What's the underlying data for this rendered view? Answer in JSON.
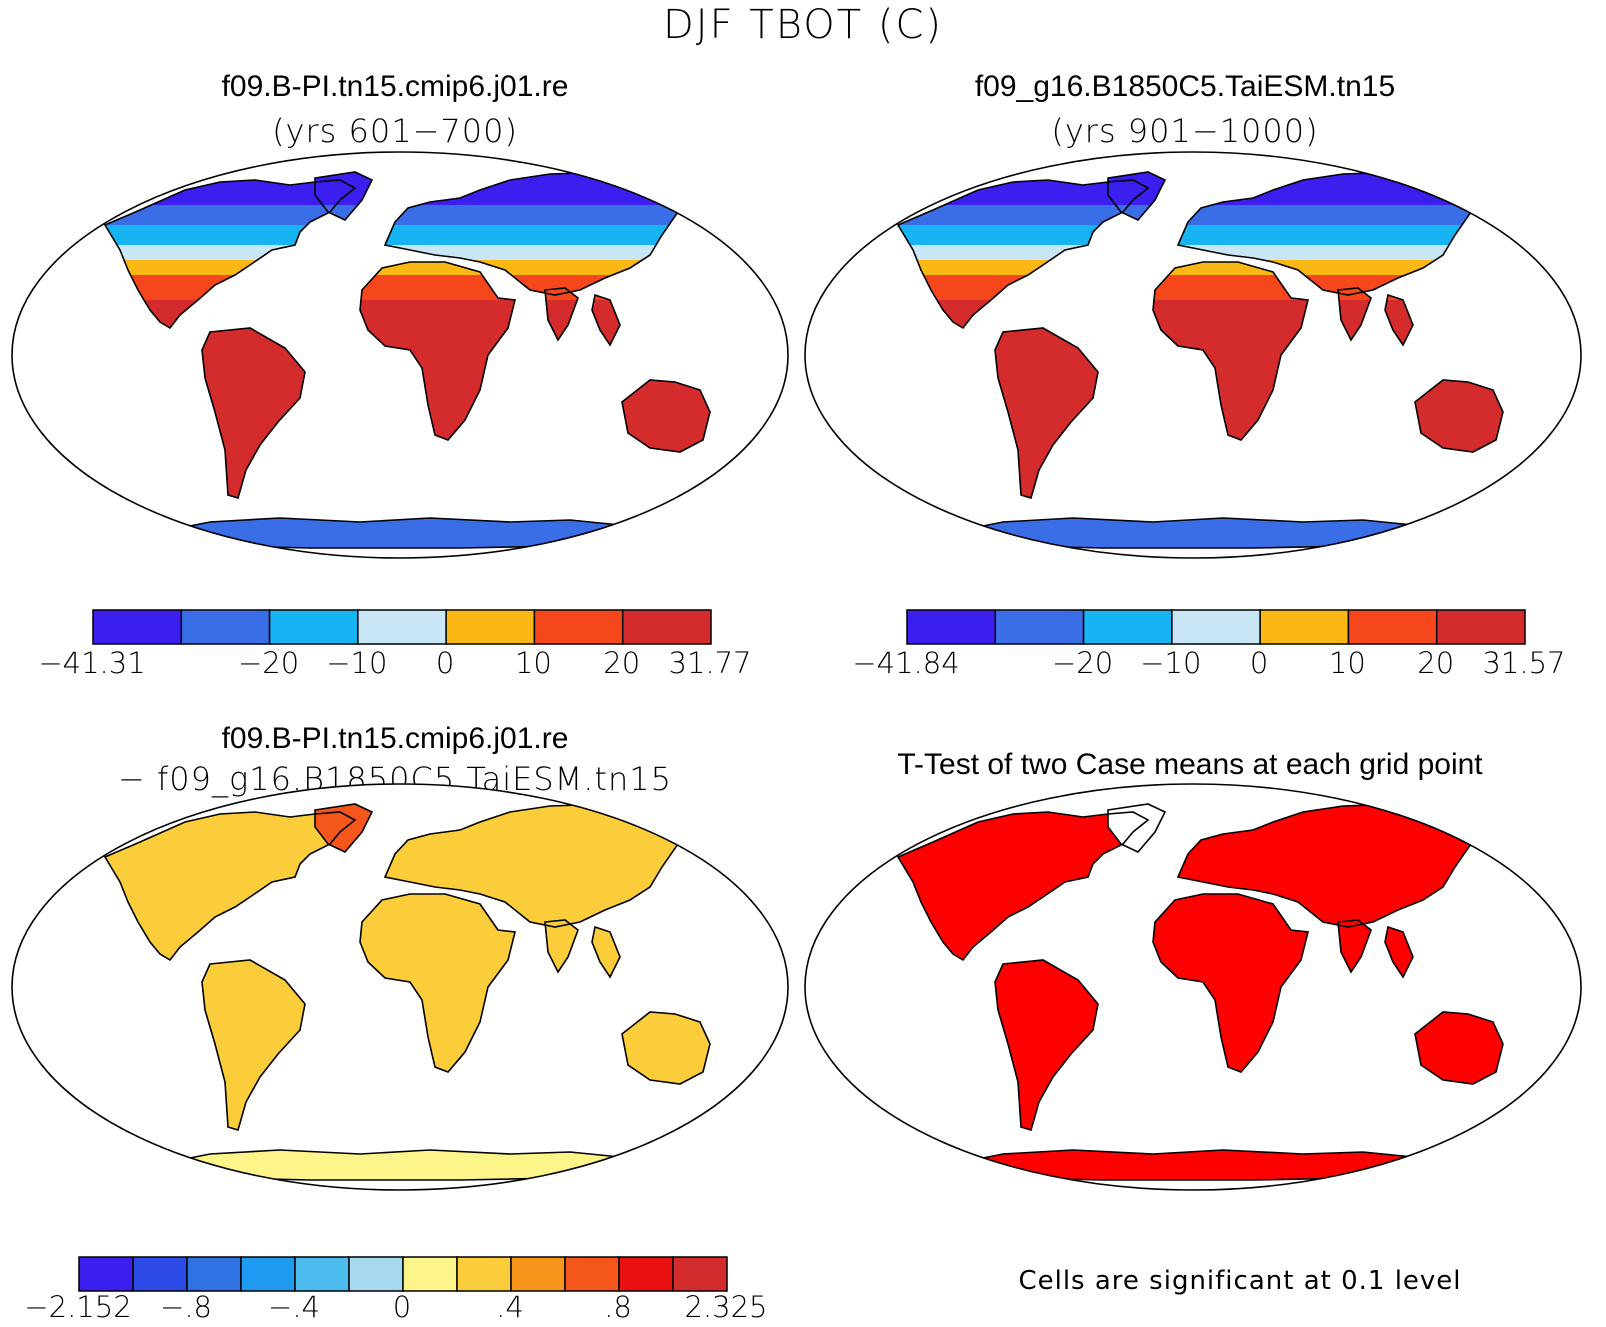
{
  "page": {
    "main_title": "DJF TBOT (C)"
  },
  "panels": {
    "top_left": {
      "title": "f09.B-PI.tn15.cmip6.j01.re",
      "subtitle": "(yrs 601−700)"
    },
    "top_right": {
      "title": "f09_g16.B1850C5.TaiESM.tn15",
      "subtitle": "(yrs 901−1000)"
    },
    "bottom_left": {
      "title": "f09.B-PI.tn15.cmip6.j01.re",
      "subtitle": "− f09_g16.B1850C5.TaiESM.tn15"
    },
    "bottom_right": {
      "title": "T-Test of two Case means at each grid point",
      "note": "Cells are significant at 0.1 level"
    }
  },
  "chart_data": [
    {
      "type": "heatmap",
      "title": "f09.B-PI.tn15.cmip6.j01.re",
      "subtitle": "(yrs 601−700)",
      "colorbar": {
        "labels": [
          "−41.31",
          "−20",
          "−10",
          "0",
          "10",
          "20",
          "31.77"
        ],
        "min": -41.31,
        "max": 31.77,
        "levels": [
          -30,
          -20,
          -10,
          0,
          10,
          20
        ],
        "colors": [
          "#3b1fee",
          "#3a6ee6",
          "#16b4f2",
          "#c8e6f6",
          "#fbb714",
          "#f6461c",
          "#d42c2c"
        ]
      }
    },
    {
      "type": "heatmap",
      "title": "f09_g16.B1850C5.TaiESM.tn15",
      "subtitle": "(yrs 901−1000)",
      "colorbar": {
        "labels": [
          "−41.84",
          "−20",
          "−10",
          "0",
          "10",
          "20",
          "31.57"
        ],
        "min": -41.84,
        "max": 31.57,
        "levels": [
          -30,
          -20,
          -10,
          0,
          10,
          20
        ],
        "colors": [
          "#3b1fee",
          "#3a6ee6",
          "#16b4f2",
          "#c8e6f6",
          "#fbb714",
          "#f6461c",
          "#d42c2c"
        ]
      }
    },
    {
      "type": "heatmap",
      "title": "f09.B-PI.tn15.cmip6.j01.re",
      "subtitle": "− f09_g16.B1850C5.TaiESM.tn15",
      "colorbar": {
        "labels": [
          "−2.152",
          "−.8",
          "−.4",
          "0",
          ".4",
          ".8",
          "2.325"
        ],
        "min": -2.152,
        "max": 2.325,
        "colors": [
          "#3b1fee",
          "#2b4ae6",
          "#2f72e2",
          "#1e9af0",
          "#4cbcee",
          "#a6d8f0",
          "#fdf48a",
          "#fbcd3a",
          "#f8961c",
          "#f4561c",
          "#e81010",
          "#d42c2c"
        ]
      }
    },
    {
      "type": "heatmap",
      "title": "T-Test of two Case means at each grid point",
      "note": "Cells are significant at 0.1 level",
      "colors": [
        "#ff0000"
      ]
    }
  ]
}
